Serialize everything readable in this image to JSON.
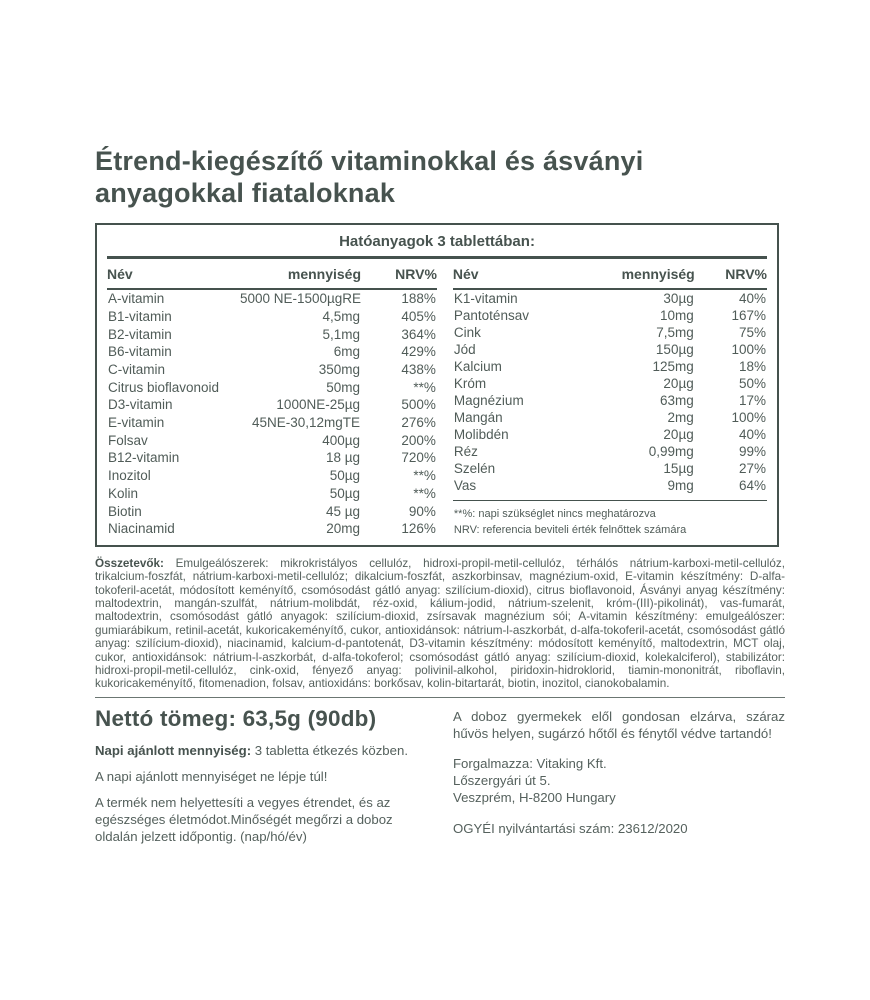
{
  "title": "Étrend-kiegészítő vitaminokkal és ásványi\nanyagokkal fiataloknak",
  "table": {
    "caption": "Hatóanyagok 3 tablettában:",
    "col_name": "Név",
    "col_amount": "mennyiség",
    "col_nrv": "NRV%",
    "left_rows": [
      {
        "name": "A-vitamin",
        "amount": "5000 NE-1500µgRE",
        "nrv": "188%"
      },
      {
        "name": "B1-vitamin",
        "amount": "4,5mg",
        "nrv": "405%"
      },
      {
        "name": "B2-vitamin",
        "amount": "5,1mg",
        "nrv": "364%"
      },
      {
        "name": "B6-vitamin",
        "amount": "6mg",
        "nrv": "429%"
      },
      {
        "name": "C-vitamin",
        "amount": "350mg",
        "nrv": "438%"
      },
      {
        "name": "Citrus bioflavonoid",
        "amount": "50mg",
        "nrv": "**%"
      },
      {
        "name": "D3-vitamin",
        "amount": "1000NE-25µg",
        "nrv": "500%"
      },
      {
        "name": "E-vitamin",
        "amount": "45NE-30,12mgTE",
        "nrv": "276%"
      },
      {
        "name": "Folsav",
        "amount": "400µg",
        "nrv": "200%"
      },
      {
        "name": "B12-vitamin",
        "amount": "18 µg",
        "nrv": "720%"
      },
      {
        "name": "Inozitol",
        "amount": "50µg",
        "nrv": "**%"
      },
      {
        "name": "Kolin",
        "amount": "50µg",
        "nrv": "**%"
      },
      {
        "name": "Biotin",
        "amount": "45 µg",
        "nrv": "90%"
      },
      {
        "name": "Niacinamid",
        "amount": "20mg",
        "nrv": "126%"
      }
    ],
    "right_rows": [
      {
        "name": "K1-vitamin",
        "amount": "30µg",
        "nrv": "40%"
      },
      {
        "name": "Pantoténsav",
        "amount": "10mg",
        "nrv": "167%"
      },
      {
        "name": "Cink",
        "amount": "7,5mg",
        "nrv": "75%"
      },
      {
        "name": "Jód",
        "amount": "150µg",
        "nrv": "100%"
      },
      {
        "name": "Kalcium",
        "amount": "125mg",
        "nrv": "18%"
      },
      {
        "name": "Króm",
        "amount": "20µg",
        "nrv": "50%"
      },
      {
        "name": "Magnézium",
        "amount": "63mg",
        "nrv": "17%"
      },
      {
        "name": "Mangán",
        "amount": "2mg",
        "nrv": "100%"
      },
      {
        "name": "Molibdén",
        "amount": "20µg",
        "nrv": "40%"
      },
      {
        "name": "Réz",
        "amount": "0,99mg",
        "nrv": "99%"
      },
      {
        "name": "Szelén",
        "amount": "15µg",
        "nrv": "27%"
      },
      {
        "name": "Vas",
        "amount": "9mg",
        "nrv": "64%"
      }
    ],
    "footnote_symbol": "**%: napi szükséglet nincs meghatározva",
    "footnote_nrv": "NRV: referencia beviteli érték felnőttek számára"
  },
  "ingredients": {
    "label": "Összetevők:",
    "text": " Emulgeálószerek: mikrokristályos cellulóz, hidroxi-propil-metil-cellulóz, térhálós nátrium-karboxi-metil-cellulóz, trikalcium-foszfát, nátrium-karboxi-metil-cellulóz; dikalcium-foszfát, aszkorbinsav, magnézium-oxid, E-vitamin készítmény: D-alfa-tokoferil-acetát, módosított keményítő, csomósodást gátló anyag: szilícium-dioxid), citrus bioflavonoid, Ásványi anyag készítmény: maltodextrin, mangán-szulfát, nátrium-molibdát, réz-oxid, kálium-jodid, nátrium-szelenit, króm-(III)-pikolinát), vas-fumarát, maltodextrin, csomósodást gátló anyagok: szilícium-dioxid, zsírsavak magnézium sói; A-vitamin készítmény: emulgeálószer: gumiarábikum, retinil-acetát, kukoricakeményítő, cukor, antioxidánsok: nátrium-l-aszkorbát, d-alfa-tokoferil-acetát, csomósodást gátló anyag: szilícium-dioxid), niacinamid, kalcium-d-pantotenát, D3-vitamin készítmény: módosított keményítő, maltodextrin, MCT olaj, cukor, antioxidánsok: nátrium-l-aszkorbát, d-alfa-tokoferol; csomósodást gátló anyag: szilícium-dioxid, kolekalciferol), stabilizátor: hidroxi-propil-metil-cellulóz, cink-oxid, fényező anyag: polivinil-alkohol, piridoxin-hidroklorid, tiamin-mononitrát, riboflavin, kukoricakeményítő, fitomenadion, folsav, antioxidáns: borkősav, kolin-bitartarát, biotin, inozitol, cianokobalamin."
  },
  "details": {
    "net_weight": "Nettó tömeg: 63,5g (90db)",
    "daily_dose_label": "Napi ajánlott mennyiség:",
    "daily_dose_text": " 3 tabletta étkezés közben.",
    "warning": "A napi ajánlott mennyiséget ne lépje túl!",
    "disclaimer": "A termék nem helyettesíti a vegyes étrendet, és az egészséges életmódot.Minőségét megőrzi a doboz oldalán jelzett időpontig. (nap/hó/év)"
  },
  "storage": "A doboz gyermekek elől gondosan elzárva, száraz hűvös helyen, sugárzó hőtől és fénytől védve tartandó!",
  "distributor_lines": [
    "Forgalmazza: Vitaking Kft.",
    "Lőszergyári út 5.",
    "Veszprém, H-8200 Hungary"
  ],
  "registration": "OGYÉI nyilvántartási szám: 23612/2020",
  "colors": {
    "text": "#505c58",
    "heading": "#47534f",
    "border": "#45524e"
  }
}
